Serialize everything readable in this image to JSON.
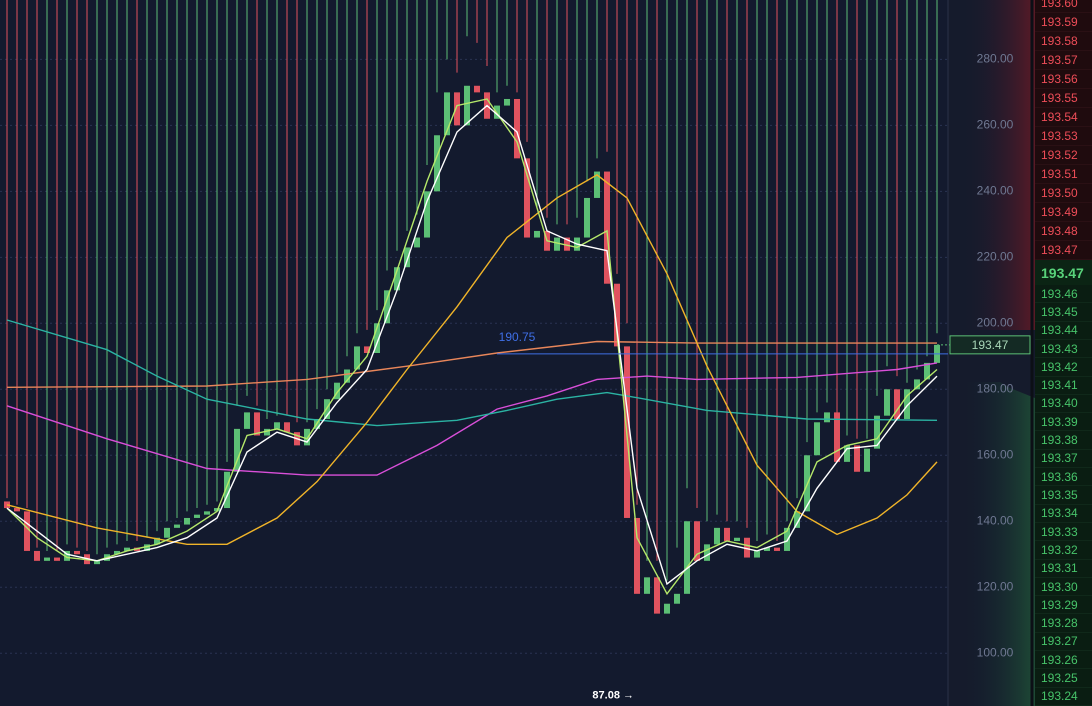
{
  "chart_data": {
    "type": "candlestick",
    "xlim": [
      -0.7,
      94.1
    ],
    "ylim": [
      84,
      298
    ],
    "yticks": [
      {
        "value": 280,
        "label": "280.00"
      },
      {
        "value": 260,
        "label": "260.00"
      },
      {
        "value": 240,
        "label": "240.00"
      },
      {
        "value": 220,
        "label": "220.00"
      },
      {
        "value": 200,
        "label": "200.00"
      },
      {
        "value": 180,
        "label": "180.00"
      },
      {
        "value": 160,
        "label": "160.00"
      },
      {
        "value": 140,
        "label": "140.00"
      },
      {
        "value": 120,
        "label": "120.00"
      },
      {
        "value": 100,
        "label": "100.00"
      }
    ],
    "grid": true,
    "up_color": "#5cbf75",
    "down_color": "#e0535f",
    "open": [
      146,
      144,
      143,
      131,
      128,
      129,
      128,
      131,
      130,
      127,
      128,
      130,
      131,
      132,
      131,
      133,
      135,
      138,
      139,
      141,
      142,
      143,
      144,
      155,
      168,
      173,
      166,
      168,
      170,
      167,
      163,
      168,
      171,
      177,
      182,
      186,
      193,
      191,
      200,
      210,
      217,
      223,
      226,
      240,
      257,
      270,
      260,
      272,
      270,
      262,
      266,
      268,
      250,
      226,
      228,
      222,
      226,
      222,
      226,
      238,
      246,
      212,
      193,
      141,
      118,
      123,
      112,
      115,
      118,
      140,
      128,
      133,
      138,
      134,
      135,
      129,
      131,
      132,
      131,
      138,
      143,
      160,
      170,
      173,
      158,
      163,
      155,
      162,
      172,
      180,
      171,
      180,
      183,
      188
    ],
    "high": [
      147,
      145,
      144,
      132,
      131,
      131,
      133,
      132,
      131,
      130,
      132,
      133,
      134,
      134,
      135,
      137,
      140,
      141,
      143,
      144,
      145,
      146,
      158,
      175,
      178,
      175,
      171,
      172,
      172,
      170,
      170,
      174,
      180,
      185,
      190,
      197,
      198,
      204,
      216,
      222,
      228,
      233,
      248,
      270,
      280,
      276,
      287,
      285,
      278,
      270,
      272,
      270,
      255,
      235,
      232,
      230,
      230,
      232,
      243,
      250,
      252,
      215,
      200,
      145,
      128,
      128,
      122,
      132,
      150,
      144,
      140,
      142,
      140,
      140,
      138,
      134,
      136,
      134,
      140,
      147,
      164,
      173,
      176,
      172,
      166,
      165,
      165,
      178,
      187,
      184,
      182,
      186,
      190,
      197
    ],
    "low": {
      "value": 87.08,
      "label": "87.08 →",
      "x": 63
    },
    "close": [
      144,
      143,
      131,
      128,
      129,
      128,
      131,
      130,
      127,
      128,
      130,
      131,
      132,
      131,
      133,
      135,
      138,
      139,
      141,
      142,
      143,
      144,
      155,
      168,
      173,
      166,
      168,
      170,
      167,
      163,
      168,
      171,
      177,
      182,
      186,
      193,
      191,
      200,
      210,
      217,
      223,
      226,
      240,
      257,
      270,
      260,
      272,
      270,
      262,
      266,
      268,
      250,
      226,
      228,
      222,
      226,
      222,
      226,
      238,
      246,
      212,
      193,
      141,
      118,
      123,
      112,
      115,
      118,
      140,
      128,
      133,
      138,
      134,
      135,
      129,
      131,
      132,
      131,
      138,
      143,
      160,
      170,
      173,
      158,
      163,
      155,
      162,
      172,
      180,
      171,
      180,
      183,
      188,
      193.47
    ],
    "indicators": [
      {
        "color": "#e8865a",
        "x": [
          0,
          20,
          30,
          40,
          49,
          59,
          69,
          79,
          93
        ],
        "values": [
          180.6,
          181,
          183,
          187,
          191,
          194.5,
          194,
          194,
          194
        ]
      },
      {
        "color": "#d94fd9",
        "x": [
          0,
          10,
          20,
          30,
          37,
          43,
          49,
          54,
          59,
          64,
          69,
          79,
          89,
          93
        ],
        "values": [
          175,
          165,
          156,
          154,
          154,
          163,
          174,
          178,
          183,
          184,
          183,
          183.6,
          186,
          188
        ]
      },
      {
        "color": "#2bb3a3",
        "x": [
          0,
          10,
          15,
          20,
          30,
          37,
          45,
          50,
          55,
          60,
          62,
          70,
          80,
          93
        ],
        "values": [
          201,
          192,
          184,
          177,
          171,
          169,
          170.6,
          173.6,
          177,
          179,
          178,
          173.6,
          171,
          170.6
        ]
      },
      {
        "color": "#f0b429",
        "x": [
          0,
          9,
          18,
          22,
          27,
          31,
          36,
          40,
          45,
          50,
          55,
          59,
          62,
          66,
          70,
          75,
          79,
          83,
          87,
          90,
          93
        ],
        "values": [
          145,
          138,
          133,
          133,
          141,
          152,
          170,
          186,
          205,
          226,
          238,
          245,
          238,
          215,
          187,
          157,
          143,
          136,
          141,
          148,
          158
        ]
      },
      {
        "color": "#b5e86a",
        "x": [
          0,
          3,
          6,
          9,
          12,
          15,
          18,
          21,
          24,
          27,
          30,
          33,
          36,
          39,
          42,
          45,
          48,
          51,
          54,
          57,
          60,
          63,
          66,
          69,
          72,
          75,
          78,
          81,
          84,
          87,
          90,
          93
        ],
        "values": [
          144,
          135,
          129,
          128,
          131,
          133,
          137,
          143,
          166,
          168,
          165,
          179,
          190,
          216,
          243,
          266,
          268,
          255,
          225,
          223,
          228,
          135,
          118,
          130,
          134,
          132,
          137,
          158,
          163,
          165,
          178,
          186
        ]
      },
      {
        "color": "#ffffff",
        "x": [
          0,
          3,
          6,
          9,
          12,
          15,
          18,
          21,
          24,
          27,
          30,
          33,
          36,
          39,
          42,
          45,
          48,
          51,
          54,
          57,
          60,
          63,
          66,
          69,
          72,
          75,
          78,
          81,
          84,
          87,
          90,
          93
        ],
        "values": [
          144,
          137,
          130,
          128,
          130,
          132,
          135,
          141,
          161,
          167,
          164,
          176,
          186,
          210,
          237,
          258,
          266,
          258,
          228,
          224,
          222,
          150,
          121,
          128,
          133,
          131,
          134,
          150,
          162,
          163,
          175,
          184
        ]
      }
    ],
    "price_line": {
      "value": 190.75,
      "start": 49,
      "color": "#3f6fe6"
    },
    "last_price": 193.47
  },
  "order_book": {
    "asks": [
      "193.60",
      "193.59",
      "193.58",
      "193.57",
      "193.56",
      "193.55",
      "193.54",
      "193.53",
      "193.52",
      "193.51",
      "193.50",
      "193.49",
      "193.48",
      "193.47"
    ],
    "last": "193.47",
    "bids": [
      "193.46",
      "193.45",
      "193.44",
      "193.43",
      "193.42",
      "193.41",
      "193.40",
      "193.39",
      "193.38",
      "193.37",
      "193.36",
      "193.35",
      "193.34",
      "193.33",
      "193.32",
      "193.31",
      "193.30",
      "193.29",
      "193.28",
      "193.27",
      "193.26",
      "193.25",
      "193.24"
    ]
  }
}
